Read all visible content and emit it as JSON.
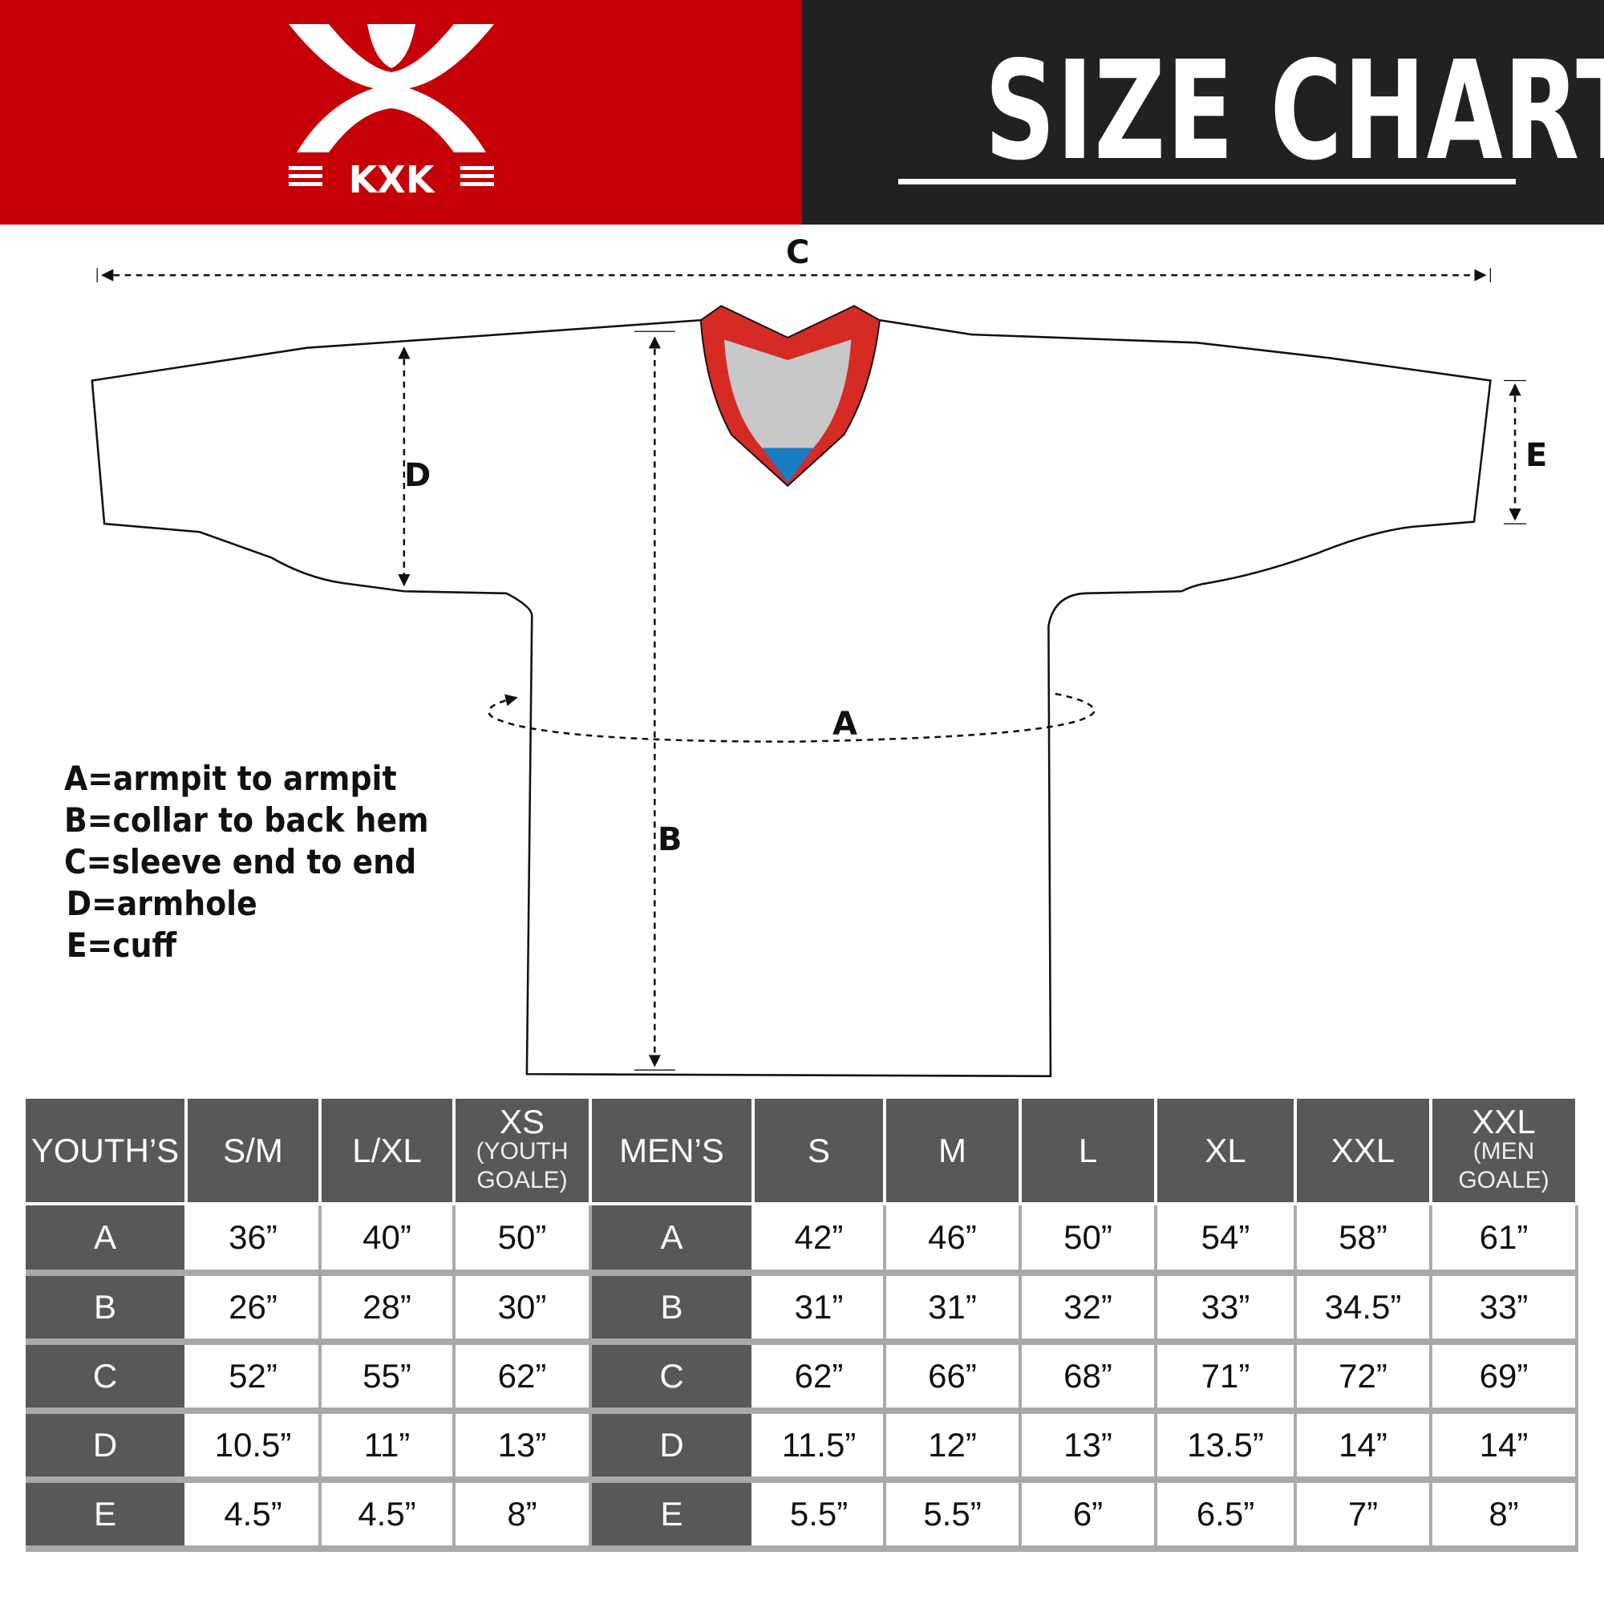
{
  "header": {
    "brand": "KXK",
    "title": "SIZE CHART",
    "colors": {
      "brand_red": "#c50006",
      "dark": "#212121",
      "table_header": "#58585a"
    }
  },
  "diagram": {
    "labels": {
      "a": "A",
      "b": "B",
      "c": "C",
      "d": "D",
      "e": "E"
    },
    "legend": [
      "A=armpit to armpit",
      "B=collar to back hem",
      "C=sleeve end to end",
      "D=armhole",
      "E=cuff"
    ]
  },
  "table": {
    "youth_header": "YOUTH’S",
    "youth_sizes": [
      {
        "main": "S/M",
        "sub": ""
      },
      {
        "main": "L/XL",
        "sub": ""
      },
      {
        "main": "XS",
        "sub": "(YOUTH GOALE)"
      }
    ],
    "men_header": "MEN’S",
    "men_sizes": [
      {
        "main": "S",
        "sub": ""
      },
      {
        "main": "M",
        "sub": ""
      },
      {
        "main": "L",
        "sub": ""
      },
      {
        "main": "XL",
        "sub": ""
      },
      {
        "main": "XXL",
        "sub": ""
      },
      {
        "main": "XXL",
        "sub": "(MEN GOALE)"
      }
    ],
    "rows": [
      {
        "label": "A",
        "youth": [
          "36”",
          "40”",
          "50”"
        ],
        "men": [
          "42”",
          "46”",
          "50”",
          "54”",
          "58”",
          "61”"
        ]
      },
      {
        "label": "B",
        "youth": [
          "26”",
          "28”",
          "30”"
        ],
        "men": [
          "31”",
          "31”",
          "32”",
          "33”",
          "34.5”",
          "33”"
        ]
      },
      {
        "label": "C",
        "youth": [
          "52”",
          "55”",
          "62”"
        ],
        "men": [
          "62”",
          "66”",
          "68”",
          "71”",
          "72”",
          "69”"
        ]
      },
      {
        "label": "D",
        "youth": [
          "10.5”",
          "11”",
          "13”"
        ],
        "men": [
          "11.5”",
          "12”",
          "13”",
          "13.5”",
          "14”",
          "14”"
        ]
      },
      {
        "label": "E",
        "youth": [
          "4.5”",
          "4.5”",
          "8”"
        ],
        "men": [
          "5.5”",
          "5.5”",
          "6”",
          "6.5”",
          "7”",
          "8”"
        ]
      }
    ]
  }
}
